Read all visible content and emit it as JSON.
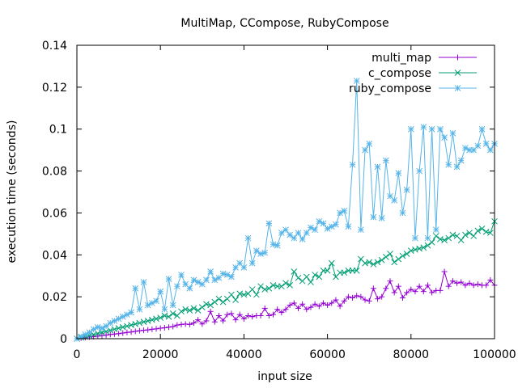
{
  "chart_data": {
    "type": "line",
    "title": "MultiMap, CCompose, RubyCompose",
    "xlabel": "input size",
    "ylabel": "execution time (seconds)",
    "xlim": [
      0,
      100000
    ],
    "ylim": [
      0,
      0.14
    ],
    "xticks": [
      0,
      20000,
      40000,
      60000,
      80000,
      100000
    ],
    "xtick_labels": [
      "0",
      "20000",
      "40000",
      "60000",
      "80000",
      "100000"
    ],
    "yticks": [
      0,
      0.02,
      0.04,
      0.06,
      0.08,
      0.1,
      0.12,
      0.14
    ],
    "ytick_labels": [
      "0",
      "0.02",
      "0.04",
      "0.06",
      "0.08",
      "0.1",
      "0.12",
      "0.14"
    ],
    "grid": false,
    "legend_position": "top-right",
    "series": [
      {
        "name": "multi_map",
        "color": "#9400d3",
        "marker": "plus",
        "x": [
          0,
          1000,
          2000,
          3000,
          4000,
          5000,
          6000,
          7000,
          8000,
          9000,
          10000,
          11000,
          12000,
          13000,
          14000,
          15000,
          16000,
          17000,
          18000,
          19000,
          20000,
          21000,
          22000,
          23000,
          24000,
          25000,
          26000,
          27000,
          28000,
          29000,
          30000,
          31000,
          32000,
          33000,
          34000,
          35000,
          36000,
          37000,
          38000,
          39000,
          40000,
          41000,
          42000,
          43000,
          44000,
          45000,
          46000,
          47000,
          48000,
          49000,
          50000,
          51000,
          52000,
          53000,
          54000,
          55000,
          56000,
          57000,
          58000,
          59000,
          60000,
          61000,
          62000,
          63000,
          64000,
          65000,
          66000,
          67000,
          68000,
          69000,
          70000,
          71000,
          72000,
          73000,
          74000,
          75000,
          76000,
          77000,
          78000,
          79000,
          80000,
          81000,
          82000,
          83000,
          84000,
          85000,
          86000,
          87000,
          88000,
          89000,
          90000,
          91000,
          92000,
          93000,
          94000,
          95000,
          96000,
          97000,
          98000,
          99000,
          100000
        ],
        "y": [
          0,
          0.0003,
          0.0005,
          0.0008,
          0.001,
          0.0012,
          0.0015,
          0.0017,
          0.002,
          0.0022,
          0.0024,
          0.0027,
          0.003,
          0.0032,
          0.0035,
          0.0038,
          0.004,
          0.0042,
          0.0045,
          0.0047,
          0.005,
          0.0052,
          0.0055,
          0.0058,
          0.0065,
          0.0068,
          0.007,
          0.0068,
          0.0075,
          0.009,
          0.007,
          0.0085,
          0.013,
          0.008,
          0.011,
          0.0085,
          0.0115,
          0.012,
          0.009,
          0.0115,
          0.0095,
          0.011,
          0.0105,
          0.011,
          0.011,
          0.0145,
          0.011,
          0.0115,
          0.014,
          0.0125,
          0.014,
          0.016,
          0.017,
          0.0145,
          0.0165,
          0.014,
          0.015,
          0.0165,
          0.0155,
          0.017,
          0.016,
          0.017,
          0.0185,
          0.0155,
          0.018,
          0.02,
          0.0195,
          0.0205,
          0.02,
          0.0185,
          0.018,
          0.024,
          0.019,
          0.02,
          0.024,
          0.0275,
          0.022,
          0.025,
          0.0195,
          0.022,
          0.0235,
          0.0225,
          0.025,
          0.0225,
          0.0255,
          0.022,
          0.023,
          0.023,
          0.032,
          0.025,
          0.0275,
          0.0265,
          0.027,
          0.0255,
          0.0265,
          0.0255,
          0.026,
          0.0255,
          0.0255,
          0.028,
          0.0255
        ]
      },
      {
        "name": "c_compose",
        "color": "#009e73",
        "marker": "cross",
        "x": [
          0,
          1000,
          2000,
          3000,
          4000,
          5000,
          6000,
          7000,
          8000,
          9000,
          10000,
          11000,
          12000,
          13000,
          14000,
          15000,
          16000,
          17000,
          18000,
          19000,
          20000,
          21000,
          22000,
          23000,
          24000,
          25000,
          26000,
          27000,
          28000,
          29000,
          30000,
          31000,
          32000,
          33000,
          34000,
          35000,
          36000,
          37000,
          38000,
          39000,
          40000,
          41000,
          42000,
          43000,
          44000,
          45000,
          46000,
          47000,
          48000,
          49000,
          50000,
          51000,
          52000,
          53000,
          54000,
          55000,
          56000,
          57000,
          58000,
          59000,
          60000,
          61000,
          62000,
          63000,
          64000,
          65000,
          66000,
          67000,
          68000,
          69000,
          70000,
          71000,
          72000,
          73000,
          74000,
          75000,
          76000,
          77000,
          78000,
          79000,
          80000,
          81000,
          82000,
          83000,
          84000,
          85000,
          86000,
          87000,
          88000,
          89000,
          90000,
          91000,
          92000,
          93000,
          94000,
          95000,
          96000,
          97000,
          98000,
          99000,
          100000
        ],
        "y": [
          0,
          0.0005,
          0.001,
          0.0015,
          0.002,
          0.0025,
          0.003,
          0.0035,
          0.004,
          0.0045,
          0.005,
          0.0055,
          0.006,
          0.0065,
          0.007,
          0.0075,
          0.008,
          0.0085,
          0.009,
          0.0095,
          0.01,
          0.011,
          0.0105,
          0.012,
          0.011,
          0.013,
          0.014,
          0.0135,
          0.0145,
          0.0135,
          0.015,
          0.0165,
          0.016,
          0.0175,
          0.019,
          0.0175,
          0.019,
          0.021,
          0.0185,
          0.0215,
          0.021,
          0.0215,
          0.0235,
          0.021,
          0.025,
          0.0235,
          0.024,
          0.0255,
          0.025,
          0.025,
          0.0265,
          0.0255,
          0.032,
          0.029,
          0.0275,
          0.0295,
          0.027,
          0.0305,
          0.0295,
          0.0325,
          0.0325,
          0.036,
          0.0295,
          0.0315,
          0.0315,
          0.0325,
          0.0325,
          0.0325,
          0.038,
          0.036,
          0.0365,
          0.0355,
          0.0365,
          0.0375,
          0.039,
          0.0405,
          0.0365,
          0.038,
          0.0395,
          0.0405,
          0.042,
          0.0425,
          0.043,
          0.0435,
          0.0445,
          0.046,
          0.049,
          0.0475,
          0.047,
          0.048,
          0.0495,
          0.049,
          0.047,
          0.0495,
          0.0505,
          0.049,
          0.0515,
          0.0525,
          0.051,
          0.0505,
          0.056
        ]
      },
      {
        "name": "ruby_compose",
        "color": "#56b4e9",
        "marker": "star",
        "x": [
          0,
          1000,
          2000,
          3000,
          4000,
          5000,
          6000,
          7000,
          8000,
          9000,
          10000,
          11000,
          12000,
          13000,
          14000,
          15000,
          16000,
          17000,
          18000,
          19000,
          20000,
          21000,
          22000,
          23000,
          24000,
          25000,
          26000,
          27000,
          28000,
          29000,
          30000,
          31000,
          32000,
          33000,
          34000,
          35000,
          36000,
          37000,
          38000,
          39000,
          40000,
          41000,
          42000,
          43000,
          44000,
          45000,
          46000,
          47000,
          48000,
          49000,
          50000,
          51000,
          52000,
          53000,
          54000,
          55000,
          56000,
          57000,
          58000,
          59000,
          60000,
          61000,
          62000,
          63000,
          64000,
          65000,
          66000,
          67000,
          68000,
          69000,
          70000,
          71000,
          72000,
          73000,
          74000,
          75000,
          76000,
          77000,
          78000,
          79000,
          80000,
          81000,
          82000,
          83000,
          84000,
          85000,
          86000,
          87000,
          88000,
          89000,
          90000,
          91000,
          92000,
          93000,
          94000,
          95000,
          96000,
          97000,
          98000,
          99000,
          100000
        ],
        "y": [
          0,
          0.001,
          0.002,
          0.003,
          0.0045,
          0.0055,
          0.005,
          0.006,
          0.0075,
          0.0085,
          0.0095,
          0.0105,
          0.0115,
          0.0125,
          0.024,
          0.014,
          0.027,
          0.016,
          0.017,
          0.018,
          0.0225,
          0.014,
          0.0285,
          0.016,
          0.025,
          0.0305,
          0.026,
          0.024,
          0.028,
          0.027,
          0.026,
          0.028,
          0.032,
          0.028,
          0.029,
          0.031,
          0.0305,
          0.0295,
          0.034,
          0.036,
          0.034,
          0.048,
          0.036,
          0.042,
          0.0405,
          0.041,
          0.055,
          0.045,
          0.0445,
          0.0505,
          0.052,
          0.0495,
          0.048,
          0.0505,
          0.0475,
          0.0505,
          0.053,
          0.052,
          0.056,
          0.055,
          0.0525,
          0.0535,
          0.0545,
          0.06,
          0.061,
          0.0535,
          0.083,
          0.123,
          0.052,
          0.09,
          0.093,
          0.058,
          0.082,
          0.0575,
          0.085,
          0.068,
          0.066,
          0.079,
          0.06,
          0.071,
          0.1,
          0.048,
          0.08,
          0.101,
          0.048,
          0.1,
          0.052,
          0.1,
          0.096,
          0.083,
          0.098,
          0.082,
          0.085,
          0.091,
          0.09,
          0.09,
          0.092,
          0.1,
          0.093,
          0.09,
          0.093
        ]
      }
    ]
  }
}
